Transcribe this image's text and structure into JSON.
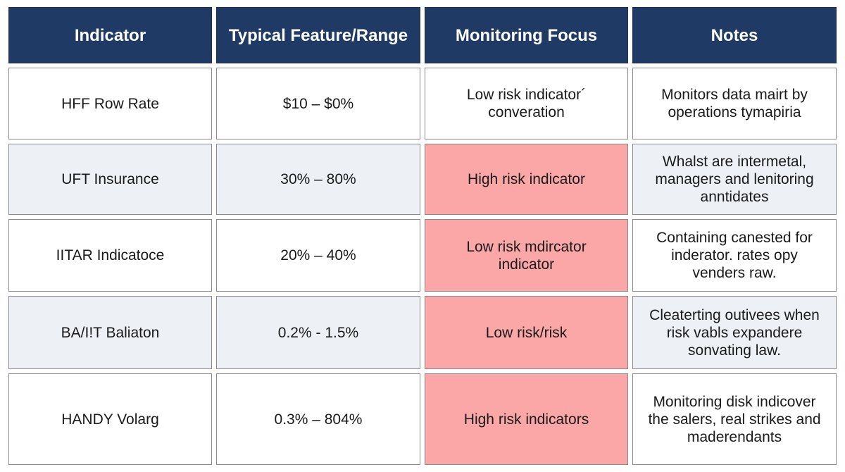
{
  "table": {
    "headers": [
      "Indicator",
      "Typical Feature/Range",
      "Monitoring Focus",
      "Notes"
    ],
    "rows": [
      {
        "indicator": "HFF Row Rate",
        "range": "$10 – $0%",
        "focus": "Low risk indicator´ converation",
        "focus_highlight": false,
        "notes": "Monitors data mairt by operations tymapiria"
      },
      {
        "indicator": "UFT Insurance",
        "range": "30% – 80%",
        "focus": "High risk indicator",
        "focus_highlight": true,
        "notes": "Whalst are intermetal, managers and lenitoring anntidates"
      },
      {
        "indicator": "IITAR Indicatoce",
        "range": "20% – 40%",
        "focus": "Low risk mdircator indicator",
        "focus_highlight": true,
        "notes": "Containing canested for inderator. rates opy venders raw."
      },
      {
        "indicator": "BA/I!T Baliaton",
        "range": "0.2% - 1.5%",
        "focus": "Low risk/risk",
        "focus_highlight": true,
        "notes": "Cleaterting outivees when risk vabls expandere sonvating law."
      },
      {
        "indicator": "HANDY Volarg",
        "range": "0.3% – 804%",
        "focus": "High risk indicators",
        "focus_highlight": true,
        "notes": "Monitoring disk indicover the salers, real strikes and maderendants"
      }
    ]
  },
  "colors": {
    "header_bg": "#1f3a64",
    "header_text": "#ffffff",
    "row_tint": "#edf1f6",
    "risk_highlight": "#fba7a7",
    "border": "#8a8a8a"
  }
}
